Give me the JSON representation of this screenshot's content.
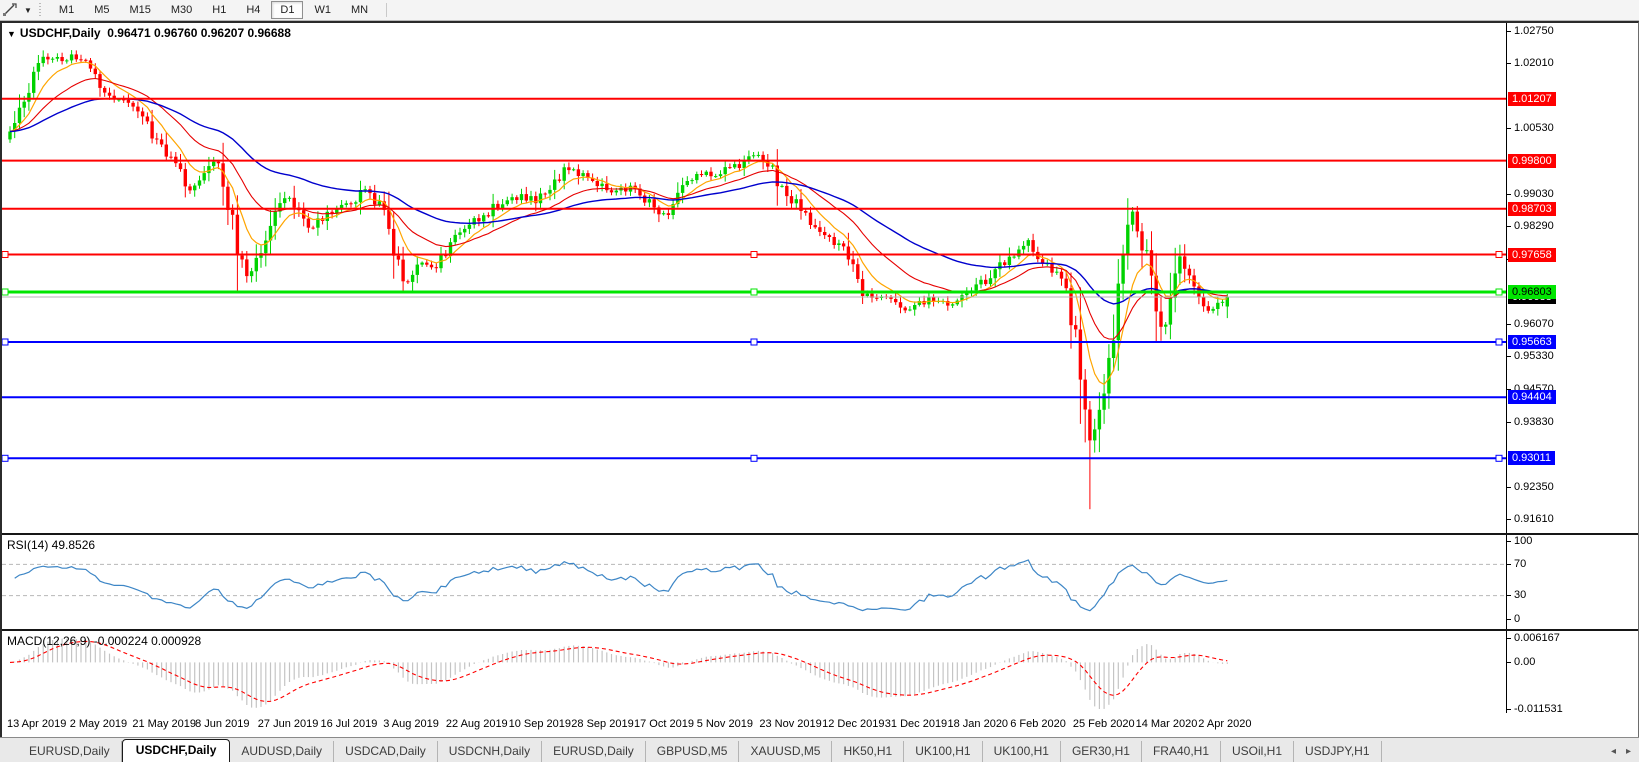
{
  "toolbar": {
    "timeframes": [
      "M1",
      "M5",
      "M15",
      "M30",
      "H1",
      "H4",
      "D1",
      "W1",
      "MN"
    ],
    "active_timeframe": "D1"
  },
  "title": {
    "symbol": "USDCHF,Daily",
    "open": "0.96471",
    "high": "0.96760",
    "low": "0.96207",
    "close": "0.96688"
  },
  "price_axis_ticks": [
    "1.02750",
    "1.02010",
    "1.00530",
    "0.99030",
    "0.98290",
    "0.97550",
    "0.96070",
    "0.95330",
    "0.94570",
    "0.93830",
    "0.92350",
    "0.91610"
  ],
  "levels": [
    {
      "price": 1.01207,
      "label": "1.01207",
      "color": "#ff0000",
      "text_color": "#ffffff",
      "thickness": 2,
      "selected": false
    },
    {
      "price": 0.998,
      "label": "0.99800",
      "color": "#ff0000",
      "text_color": "#ffffff",
      "thickness": 2,
      "selected": false
    },
    {
      "price": 0.98703,
      "label": "0.98703",
      "color": "#ff0000",
      "text_color": "#ffffff",
      "thickness": 2,
      "selected": false
    },
    {
      "price": 0.97658,
      "label": "0.97658",
      "color": "#ff0000",
      "text_color": "#ffffff",
      "thickness": 2,
      "selected": true
    },
    {
      "price": 0.96803,
      "label": "0.96803",
      "color": "#00e600",
      "text_color": "#000000",
      "thickness": 3,
      "selected": true
    },
    {
      "price": 0.95663,
      "label": "0.95663",
      "color": "#0000ff",
      "text_color": "#ffffff",
      "thickness": 2,
      "selected": true
    },
    {
      "price": 0.94404,
      "label": "0.94404",
      "color": "#0000ff",
      "text_color": "#ffffff",
      "thickness": 2,
      "selected": false
    },
    {
      "price": 0.93011,
      "label": "0.93011",
      "color": "#0000ff",
      "text_color": "#ffffff",
      "thickness": 2,
      "selected": true
    }
  ],
  "current_price": {
    "label": "0.96688",
    "value": 0.96688,
    "line_color": "#b4b4b4"
  },
  "dates": [
    "13 Apr 2019",
    "2 May 2019",
    "21 May 2019",
    "8 Jun 2019",
    "27 Jun 2019",
    "16 Jul 2019",
    "3 Aug 2019",
    "22 Aug 2019",
    "10 Sep 2019",
    "28 Sep 2019",
    "17 Oct 2019",
    "5 Nov 2019",
    "23 Nov 2019",
    "12 Dec 2019",
    "31 Dec 2019",
    "18 Jan 2020",
    "6 Feb 2020",
    "25 Feb 2020",
    "14 Mar 2020",
    "2 Apr 2020"
  ],
  "rsi": {
    "label": "RSI(14) 49.8526",
    "value": 49.8526,
    "ticks": [
      {
        "v": 100,
        "label": "100"
      },
      {
        "v": 70,
        "label": "70"
      },
      {
        "v": 30,
        "label": "30"
      },
      {
        "v": 0,
        "label": "0"
      }
    ],
    "dashed_levels": [
      70,
      30
    ],
    "line_color": "#3d86c6"
  },
  "macd": {
    "label": "MACD(12,26,9) -0.000224 0.000928",
    "main_value": -0.000224,
    "signal_value": 0.000928,
    "ticks": [
      {
        "v": 0.006167,
        "label": "0.006167"
      },
      {
        "v": 0,
        "label": "0.00"
      },
      {
        "v": -0.011531,
        "label": "-0.011531"
      }
    ],
    "hist_color": "#c4c4c4",
    "signal_color": "#ff0000"
  },
  "tabs": [
    {
      "label": "EURUSD,Daily",
      "active": false
    },
    {
      "label": "USDCHF,Daily",
      "active": true
    },
    {
      "label": "AUDUSD,Daily",
      "active": false
    },
    {
      "label": "USDCAD,Daily",
      "active": false
    },
    {
      "label": "USDCNH,Daily",
      "active": false
    },
    {
      "label": "EURUSD,Daily",
      "active": false
    },
    {
      "label": "GBPUSD,M5",
      "active": false
    },
    {
      "label": "XAUUSD,M5",
      "active": false
    },
    {
      "label": "HK50,H1",
      "active": false
    },
    {
      "label": "UK100,H1",
      "active": false
    },
    {
      "label": "UK100,H1",
      "active": false
    },
    {
      "label": "GER30,H1",
      "active": false
    },
    {
      "label": "FRA40,H1",
      "active": false
    },
    {
      "label": "USOil,H1",
      "active": false
    },
    {
      "label": "USDJPY,H1",
      "active": false
    }
  ],
  "colors": {
    "bull": "#00d200",
    "bear": "#ff0000",
    "ma_fast": "#ffa500",
    "ma_mid": "#e60000",
    "ma_slow": "#0000cd"
  },
  "chart_data": {
    "type": "candlestick",
    "symbol": "USDCHF",
    "timeframe": "Daily",
    "bars": 258,
    "price_path": [
      [
        8,
        1.004
      ],
      [
        20,
        1.0105
      ],
      [
        32,
        1.018
      ],
      [
        45,
        1.0215
      ],
      [
        60,
        1.0208
      ],
      [
        75,
        1.0218
      ],
      [
        88,
        1.019
      ],
      [
        100,
        1.0152
      ],
      [
        112,
        1.0128
      ],
      [
        125,
        1.0105
      ],
      [
        138,
        1.0082
      ],
      [
        150,
        1.004
      ],
      [
        162,
        1.0008
      ],
      [
        172,
        0.9975
      ],
      [
        182,
        0.993
      ],
      [
        192,
        0.9912
      ],
      [
        200,
        0.994
      ],
      [
        210,
        0.9988
      ],
      [
        220,
        0.9945
      ],
      [
        228,
        0.987
      ],
      [
        236,
        0.9775
      ],
      [
        245,
        0.9722
      ],
      [
        252,
        0.974
      ],
      [
        260,
        0.979
      ],
      [
        270,
        0.9835
      ],
      [
        280,
        0.988
      ],
      [
        288,
        0.9902
      ],
      [
        296,
        0.9858
      ],
      [
        306,
        0.9828
      ],
      [
        316,
        0.984
      ],
      [
        326,
        0.9858
      ],
      [
        336,
        0.9868
      ],
      [
        346,
        0.988
      ],
      [
        356,
        0.9898
      ],
      [
        366,
        0.9922
      ],
      [
        374,
        0.989
      ],
      [
        382,
        0.9855
      ],
      [
        390,
        0.978
      ],
      [
        398,
        0.9725
      ],
      [
        405,
        0.97
      ],
      [
        412,
        0.9722
      ],
      [
        420,
        0.9748
      ],
      [
        428,
        0.973
      ],
      [
        436,
        0.9745
      ],
      [
        444,
        0.977
      ],
      [
        452,
        0.9795
      ],
      [
        462,
        0.9825
      ],
      [
        472,
        0.9842
      ],
      [
        482,
        0.9852
      ],
      [
        492,
        0.9878
      ],
      [
        502,
        0.9878
      ],
      [
        512,
        0.9895
      ],
      [
        522,
        0.9898
      ],
      [
        532,
        0.9888
      ],
      [
        542,
        0.9905
      ],
      [
        552,
        0.9925
      ],
      [
        562,
        0.9958
      ],
      [
        570,
        0.9968
      ],
      [
        578,
        0.9948
      ],
      [
        588,
        0.9932
      ],
      [
        598,
        0.9928
      ],
      [
        608,
        0.99
      ],
      [
        618,
        0.9908
      ],
      [
        628,
        0.992
      ],
      [
        638,
        0.9905
      ],
      [
        648,
        0.9878
      ],
      [
        658,
        0.9852
      ],
      [
        668,
        0.986
      ],
      [
        678,
        0.99
      ],
      [
        688,
        0.9938
      ],
      [
        698,
        0.9955
      ],
      [
        708,
        0.9942
      ],
      [
        718,
        0.995
      ],
      [
        728,
        0.9962
      ],
      [
        738,
        0.9972
      ],
      [
        748,
        0.9982
      ],
      [
        758,
        0.9992
      ],
      [
        768,
        0.9965
      ],
      [
        778,
        0.992
      ],
      [
        788,
        0.9892
      ],
      [
        798,
        0.988
      ],
      [
        808,
        0.9838
      ],
      [
        818,
        0.9812
      ],
      [
        828,
        0.9798
      ],
      [
        838,
        0.9785
      ],
      [
        848,
        0.9745
      ],
      [
        858,
        0.9695
      ],
      [
        868,
        0.966
      ],
      [
        878,
        0.9672
      ],
      [
        888,
        0.967
      ],
      [
        898,
        0.965
      ],
      [
        908,
        0.9642
      ],
      [
        918,
        0.9652
      ],
      [
        928,
        0.9668
      ],
      [
        938,
        0.966
      ],
      [
        948,
        0.9655
      ],
      [
        958,
        0.9662
      ],
      [
        968,
        0.968
      ],
      [
        978,
        0.9695
      ],
      [
        988,
        0.9718
      ],
      [
        998,
        0.974
      ],
      [
        1008,
        0.9762
      ],
      [
        1018,
        0.9788
      ],
      [
        1026,
        0.9792
      ],
      [
        1034,
        0.9768
      ],
      [
        1042,
        0.9752
      ],
      [
        1050,
        0.9735
      ],
      [
        1058,
        0.9712
      ],
      [
        1066,
        0.966
      ],
      [
        1074,
        0.956
      ],
      [
        1082,
        0.943
      ],
      [
        1088,
        0.9335
      ],
      [
        1094,
        0.939
      ],
      [
        1100,
        0.9455
      ],
      [
        1106,
        0.952
      ],
      [
        1112,
        0.959
      ],
      [
        1118,
        0.97
      ],
      [
        1124,
        0.98
      ],
      [
        1130,
        0.9858
      ],
      [
        1136,
        0.983
      ],
      [
        1142,
        0.9778
      ],
      [
        1148,
        0.971
      ],
      [
        1154,
        0.965
      ],
      [
        1160,
        0.96
      ],
      [
        1166,
        0.9638
      ],
      [
        1172,
        0.97
      ],
      [
        1178,
        0.9752
      ],
      [
        1184,
        0.9728
      ],
      [
        1190,
        0.969
      ],
      [
        1196,
        0.9665
      ],
      [
        1202,
        0.965
      ],
      [
        1208,
        0.9642
      ],
      [
        1214,
        0.9652
      ],
      [
        1220,
        0.966
      ],
      [
        1225,
        0.96688
      ]
    ],
    "special_lows": [
      [
        1088,
        0.9185
      ]
    ],
    "last_candle": {
      "o": 0.96471,
      "h": 0.9676,
      "l": 0.96207,
      "c": 0.96688
    }
  }
}
